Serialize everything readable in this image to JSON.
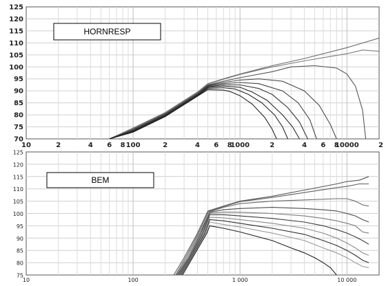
{
  "chart_data": [
    {
      "type": "line",
      "title": "HORNRESP",
      "x_scale": "log",
      "xlim": [
        10,
        20000
      ],
      "ylim": [
        70,
        125
      ],
      "y_ticks": [
        70,
        75,
        80,
        85,
        90,
        95,
        100,
        105,
        110,
        115,
        120,
        125
      ],
      "x_tick_labels": [
        {
          "x": 10,
          "label": "10"
        },
        {
          "x": 20,
          "label": "2"
        },
        {
          "x": 40,
          "label": "4"
        },
        {
          "x": 60,
          "label": "6"
        },
        {
          "x": 80,
          "label": "8"
        },
        {
          "x": 100,
          "label": "100"
        },
        {
          "x": 200,
          "label": "2"
        },
        {
          "x": 400,
          "label": "4"
        },
        {
          "x": 600,
          "label": "6"
        },
        {
          "x": 800,
          "label": "8"
        },
        {
          "x": 1000,
          "label": "1000"
        },
        {
          "x": 2000,
          "label": "2"
        },
        {
          "x": 4000,
          "label": "4"
        },
        {
          "x": 6000,
          "label": "6"
        },
        {
          "x": 8000,
          "label": "8"
        },
        {
          "x": 10000,
          "label": "10000"
        },
        {
          "x": 20000,
          "label": "2"
        }
      ],
      "grid": true,
      "series": [
        {
          "x": [
            60,
            100,
            200,
            400,
            500,
            700,
            1000,
            2000,
            4000,
            10000,
            20000
          ],
          "y": [
            70,
            74.5,
            81,
            89.5,
            93,
            95,
            97,
            100.5,
            103.5,
            108,
            112
          ]
        },
        {
          "x": [
            60,
            100,
            200,
            400,
            500,
            700,
            1000,
            2000,
            4000,
            10000,
            14000,
            20000
          ],
          "y": [
            70,
            74.3,
            80.8,
            89.3,
            92.8,
            94.8,
            96.8,
            100,
            102.5,
            105.5,
            107,
            106.5
          ]
        },
        {
          "x": [
            60,
            100,
            200,
            400,
            500,
            700,
            1000,
            2000,
            3000,
            5000,
            8000,
            10000,
            12000,
            14000,
            15000
          ],
          "y": [
            70,
            74,
            80.5,
            89,
            92.5,
            94,
            95.5,
            98,
            100,
            100.5,
            99.5,
            97,
            92,
            82,
            70
          ]
        },
        {
          "x": [
            60,
            100,
            200,
            400,
            500,
            700,
            1000,
            1500,
            2500,
            4000,
            5500,
            7000,
            8000
          ],
          "y": [
            70,
            73.8,
            80.3,
            88.8,
            92.3,
            93.5,
            94.5,
            95,
            94,
            90,
            84,
            76,
            70
          ]
        },
        {
          "x": [
            60,
            100,
            200,
            400,
            500,
            700,
            1000,
            1500,
            2500,
            3500,
            4500,
            5200
          ],
          "y": [
            70,
            73.6,
            80.1,
            88.6,
            92,
            93,
            93.5,
            93,
            90,
            85,
            78,
            70
          ]
        },
        {
          "x": [
            60,
            100,
            200,
            400,
            500,
            700,
            1000,
            1500,
            2000,
            2800,
            3600,
            4300
          ],
          "y": [
            70,
            73.4,
            79.9,
            88.4,
            91.7,
            92.5,
            92.5,
            91,
            88.5,
            83,
            77,
            70
          ]
        },
        {
          "x": [
            60,
            100,
            200,
            400,
            500,
            700,
            1000,
            1300,
            1800,
            2500,
            3100,
            3600
          ],
          "y": [
            70,
            73.2,
            79.7,
            88.2,
            91.4,
            92,
            91.5,
            89.5,
            86,
            80,
            75,
            70
          ]
        },
        {
          "x": [
            60,
            100,
            200,
            400,
            500,
            700,
            900,
            1200,
            1600,
            2100,
            2500,
            2800
          ],
          "y": [
            70,
            73,
            79.5,
            88,
            91,
            91.3,
            90.8,
            88.5,
            85,
            80,
            75,
            70
          ]
        },
        {
          "x": [
            60,
            100,
            200,
            400,
            500,
            700,
            800,
            1000,
            1300,
            1700,
            2000,
            2200
          ],
          "y": [
            70,
            72.8,
            79.3,
            87.8,
            90.5,
            90.3,
            89.8,
            88,
            84.5,
            79,
            74,
            70
          ]
        }
      ]
    },
    {
      "type": "line",
      "title": "BEM",
      "x_scale": "log",
      "xlim": [
        10,
        20000
      ],
      "ylim": [
        75,
        125
      ],
      "y_ticks": [
        75,
        80,
        85,
        90,
        95,
        100,
        105,
        110,
        115,
        120,
        125
      ],
      "x_tick_labels": [
        {
          "x": 10,
          "label": "10"
        },
        {
          "x": 100,
          "label": "100"
        },
        {
          "x": 1000,
          "label": "1 000"
        },
        {
          "x": 10000,
          "label": "10 000"
        }
      ],
      "grid": true,
      "series": [
        {
          "x": [
            240,
            300,
            400,
            500,
            700,
            1000,
            2000,
            4000,
            8000,
            10000,
            13000,
            16000
          ],
          "y": [
            75,
            82,
            92,
            101,
            103,
            105,
            107,
            109.5,
            112,
            113,
            113.5,
            115
          ]
        },
        {
          "x": [
            250,
            310,
            410,
            510,
            700,
            1000,
            2000,
            4000,
            8000,
            10000,
            13000,
            16000
          ],
          "y": [
            75,
            82,
            92,
            100.8,
            102.8,
            104.8,
            106.5,
            108.5,
            110.5,
            111,
            112,
            112
          ]
        },
        {
          "x": [
            255,
            320,
            420,
            520,
            700,
            1000,
            2000,
            4000,
            8000,
            10000,
            12000,
            14000,
            16000
          ],
          "y": [
            75,
            82,
            92,
            100.6,
            102.5,
            104,
            105,
            105.5,
            106,
            106,
            105,
            103.5,
            103
          ]
        },
        {
          "x": [
            260,
            330,
            430,
            520,
            700,
            1000,
            2000,
            4000,
            6000,
            8000,
            10000,
            12000,
            14000,
            16000
          ],
          "y": [
            75,
            82,
            92,
            100.4,
            101.5,
            102,
            102.5,
            102,
            101.5,
            101,
            100,
            99,
            97.5,
            96.5
          ]
        },
        {
          "x": [
            265,
            335,
            440,
            520,
            700,
            1000,
            2000,
            4000,
            6000,
            8000,
            10000,
            12000,
            14000,
            16000
          ],
          "y": [
            75,
            82,
            92,
            100,
            100.6,
            100.5,
            100,
            99,
            98,
            97,
            96,
            95,
            92.5,
            92
          ]
        },
        {
          "x": [
            270,
            340,
            450,
            520,
            700,
            1000,
            2000,
            4000,
            6000,
            8000,
            10000,
            12000,
            14000,
            16000
          ],
          "y": [
            75,
            82,
            92,
            99.5,
            99.5,
            99,
            98,
            96.5,
            95,
            93.5,
            92,
            90.5,
            89,
            87.5
          ]
        },
        {
          "x": [
            275,
            345,
            460,
            520,
            700,
            1000,
            2000,
            4000,
            6000,
            8000,
            10000,
            12000,
            14000,
            16000
          ],
          "y": [
            75,
            82,
            92,
            98.5,
            98.2,
            97.5,
            96,
            94,
            92,
            90,
            88,
            86,
            84,
            83
          ]
        },
        {
          "x": [
            280,
            350,
            470,
            520,
            700,
            1000,
            2000,
            4000,
            6000,
            8000,
            10000,
            12000,
            14000,
            16000
          ],
          "y": [
            75,
            82,
            92,
            97.5,
            97,
            96,
            94,
            91.5,
            89,
            87,
            85,
            83,
            81,
            80
          ]
        },
        {
          "x": [
            285,
            355,
            480,
            520,
            700,
            1000,
            2000,
            4000,
            6000,
            8000,
            10000,
            12000,
            14000,
            16000
          ],
          "y": [
            75,
            82,
            92,
            96.5,
            95.5,
            94.5,
            92,
            89,
            86,
            84,
            82,
            80,
            78.5,
            78
          ]
        },
        {
          "x": [
            290,
            360,
            490,
            520,
            700,
            1000,
            2000,
            3000,
            4000,
            5000,
            6000,
            7000,
            8000
          ],
          "y": [
            75,
            82,
            92,
            95,
            94,
            92.5,
            89,
            86,
            84,
            82,
            80,
            78,
            75
          ]
        }
      ]
    }
  ]
}
